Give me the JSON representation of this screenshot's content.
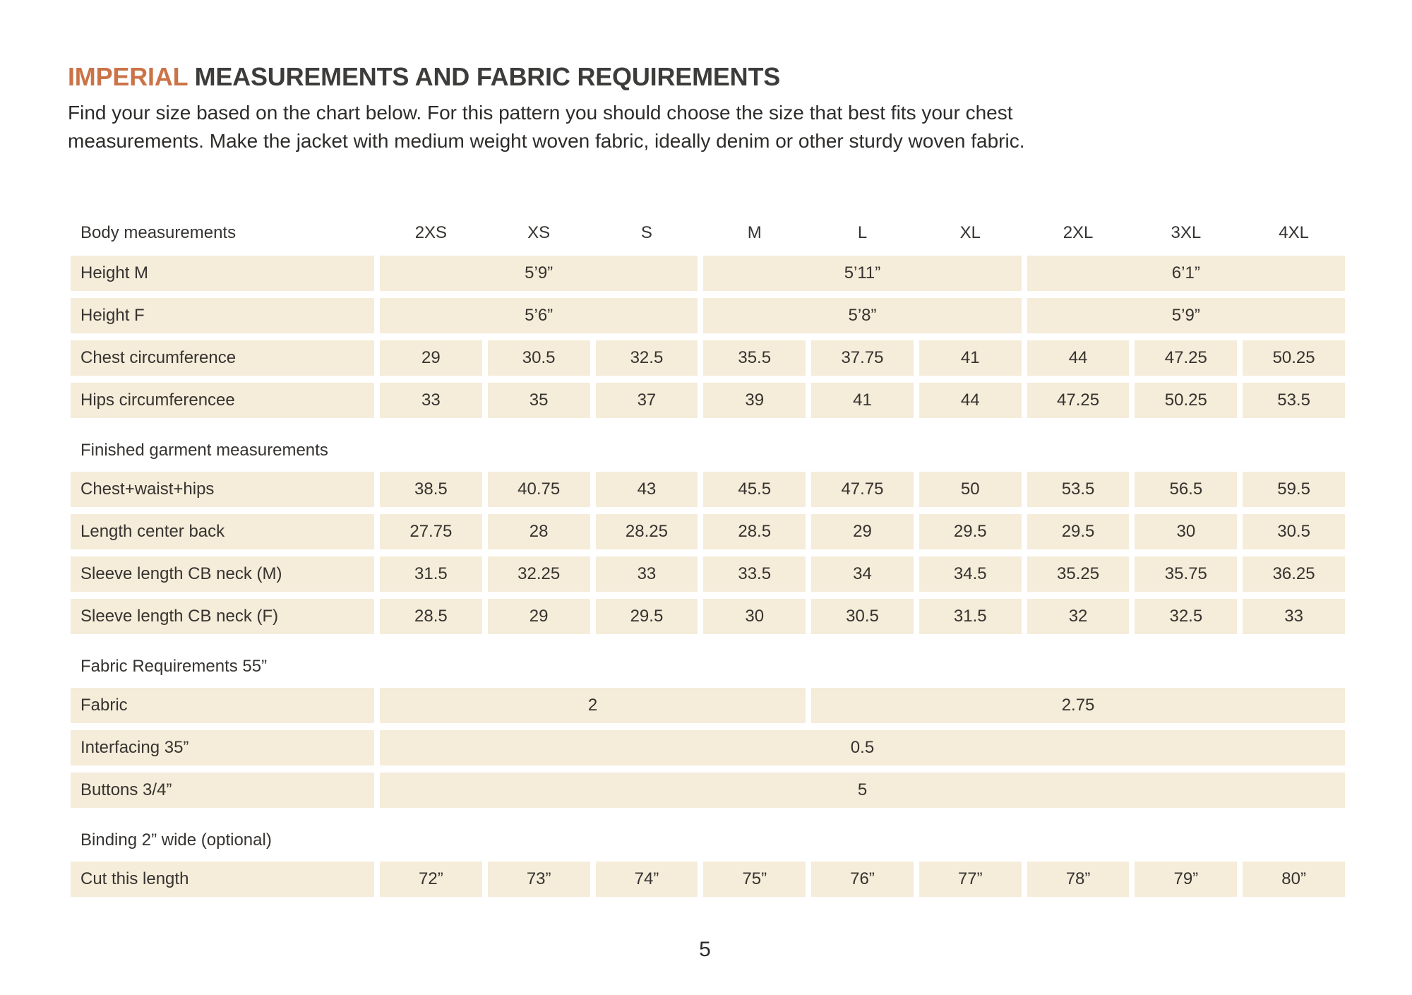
{
  "colors": {
    "accent": "#cb7347",
    "cell_background": "#f5ecd9",
    "text": "#363330"
  },
  "header": {
    "title_highlight": "IMPERIAL",
    "title_rest": " MEASUREMENTS AND FABRIC REQUIREMENTS",
    "intro_line1": "Find your size based on the chart below. For this pattern you should choose the size that best fits your chest",
    "intro_line2": "measurements. Make the jacket with medium weight woven fabric, ideally denim or other sturdy woven fabric."
  },
  "table": {
    "header_label": "Body measurements",
    "sizes": [
      "2XS",
      "XS",
      "S",
      "M",
      "L",
      "XL",
      "2XL",
      "3XL",
      "4XL"
    ],
    "height_m": {
      "label": "Height M",
      "values": [
        "5’9”",
        "5’11”",
        "6’1”"
      ]
    },
    "height_f": {
      "label": "Height F",
      "values": [
        "5’6”",
        "5’8”",
        "5’9”"
      ]
    },
    "chest": {
      "label": "Chest circumference",
      "values": [
        "29",
        "30.5",
        "32.5",
        "35.5",
        "37.75",
        "41",
        "44",
        "47.25",
        "50.25"
      ]
    },
    "hips": {
      "label": "Hips circumferencee",
      "values": [
        "33",
        "35",
        "37",
        "39",
        "41",
        "44",
        "47.25",
        "50.25",
        "53.5"
      ]
    },
    "section_finished": "Finished garment measurements",
    "cwh": {
      "label": "Chest+waist+hips",
      "values": [
        "38.5",
        "40.75",
        "43",
        "45.5",
        "47.75",
        "50",
        "53.5",
        "56.5",
        "59.5"
      ]
    },
    "length_cb": {
      "label": "Length center back",
      "values": [
        "27.75",
        "28",
        "28.25",
        "28.5",
        "29",
        "29.5",
        "29.5",
        "30",
        "30.5"
      ]
    },
    "sleeve_m": {
      "label": "Sleeve length CB neck (M)",
      "values": [
        "31.5",
        "32.25",
        "33",
        "33.5",
        "34",
        "34.5",
        "35.25",
        "35.75",
        "36.25"
      ]
    },
    "sleeve_f": {
      "label": "Sleeve length CB neck (F)",
      "values": [
        "28.5",
        "29",
        "29.5",
        "30",
        "30.5",
        "31.5",
        "32",
        "32.5",
        "33"
      ]
    },
    "section_fabric": "Fabric Requirements 55”",
    "fabric": {
      "label": "Fabric",
      "values": [
        "2",
        "2.75"
      ]
    },
    "interfacing": {
      "label": "Interfacing 35”",
      "value": "0.5"
    },
    "buttons": {
      "label": "Buttons 3/4”",
      "value": "5"
    },
    "section_binding": "Binding 2” wide (optional)",
    "cut": {
      "label": "Cut this length",
      "values": [
        "72”",
        "73”",
        "74”",
        "75”",
        "76”",
        "77”",
        "78”",
        "79”",
        "80”"
      ]
    }
  },
  "footer": {
    "page_number": "5"
  }
}
